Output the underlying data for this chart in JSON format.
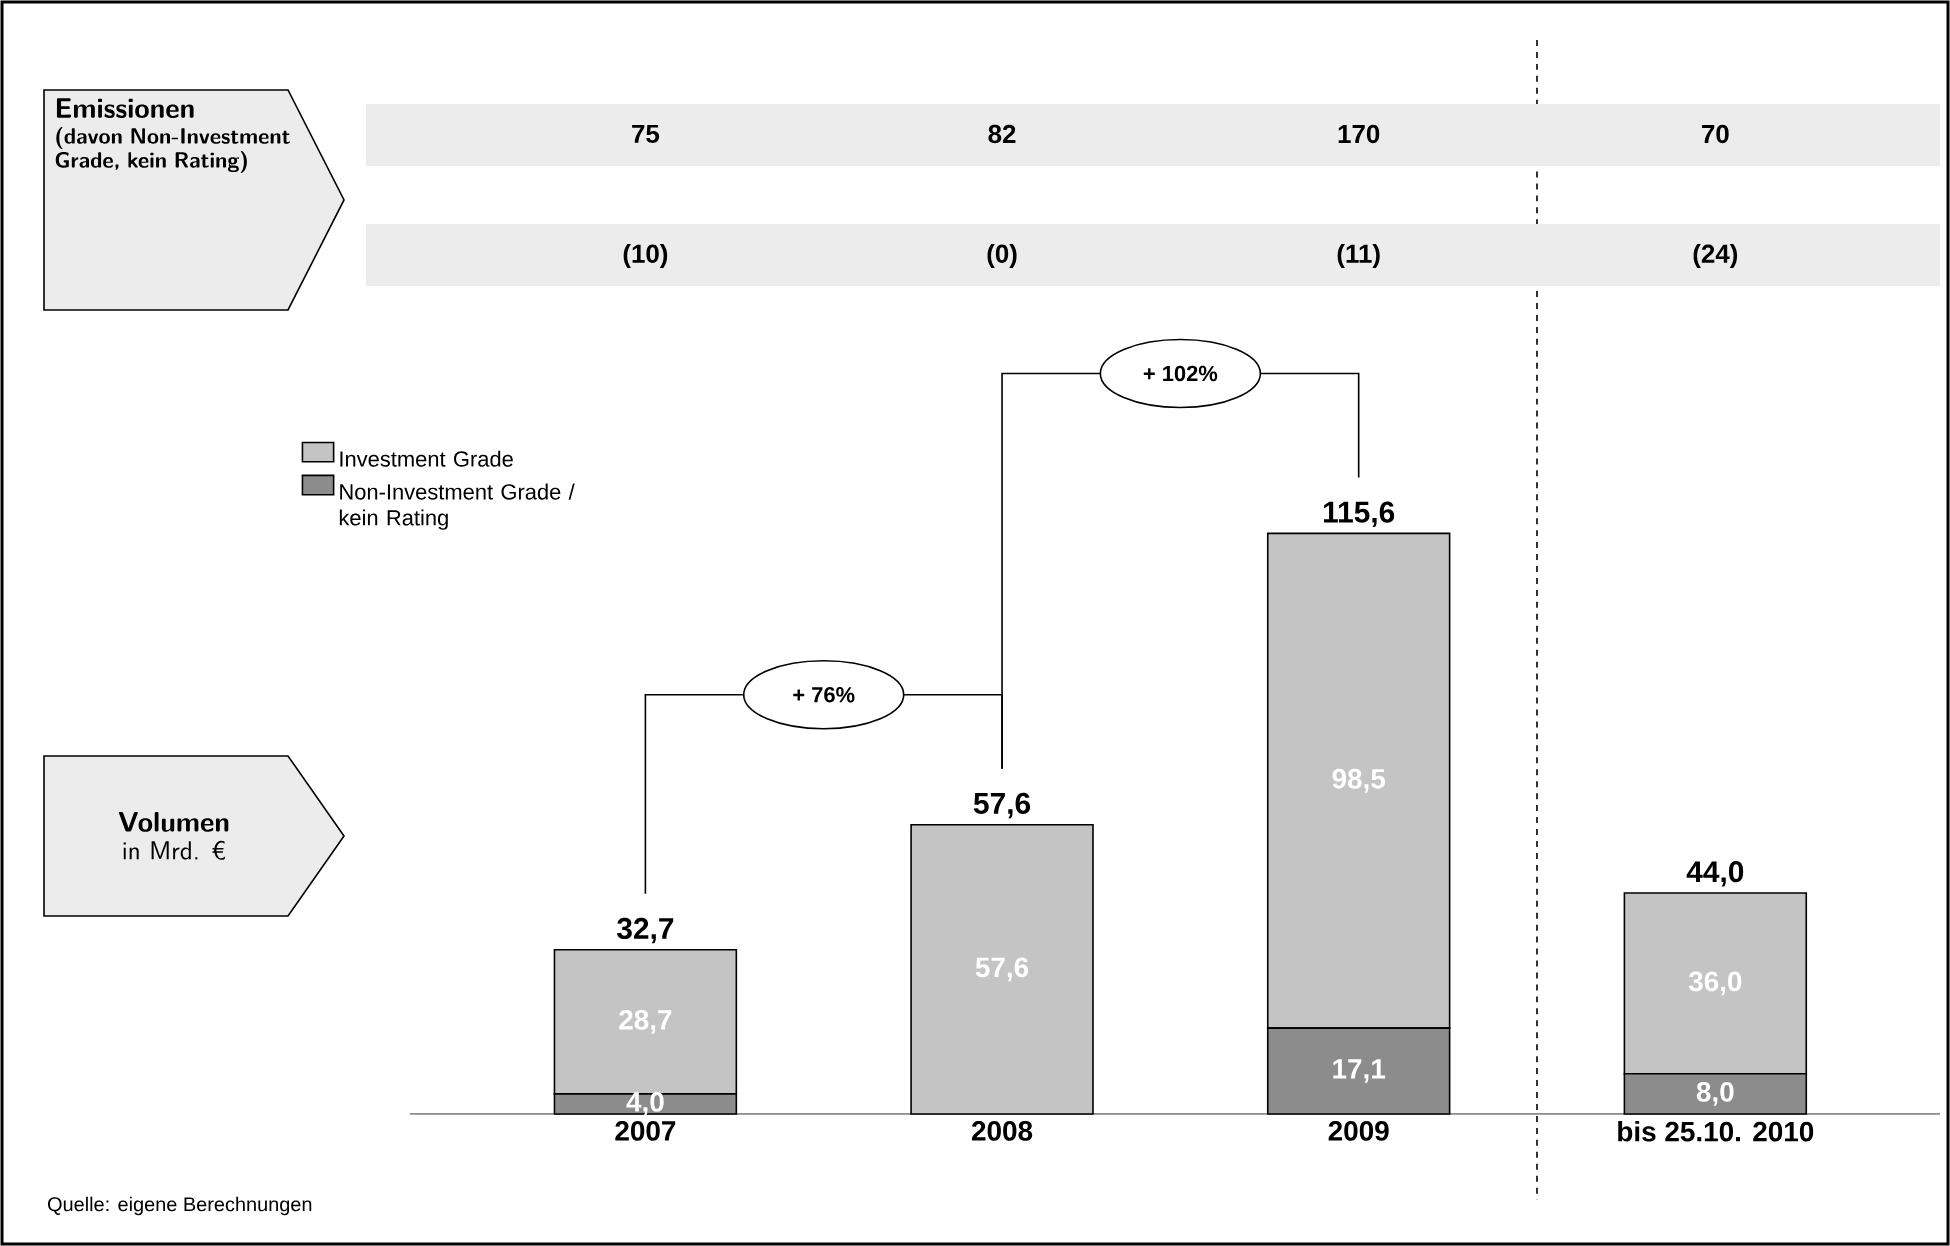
{
  "chart_data": {
    "type": "bar",
    "stacked": true,
    "categories": [
      "2007",
      "2008",
      "2009",
      "bis 25.10. 2010"
    ],
    "series": [
      {
        "name": "Non-Investment Grade / kein Rating",
        "color": "#8c8c8c",
        "values": [
          4.0,
          0,
          17.1,
          8.0
        ],
        "value_labels": [
          "4,0",
          null,
          "17,1",
          "8,0"
        ]
      },
      {
        "name": "Investment Grade",
        "color": "#c4c4c4",
        "values": [
          28.7,
          57.6,
          98.5,
          36.0
        ],
        "value_labels": [
          "28,7",
          "57,6",
          "98,5",
          "36,0"
        ]
      }
    ],
    "totals": [
      "32,7",
      "57,6",
      "115,6",
      "44,0"
    ],
    "legend": "top left",
    "annotations": [
      "Emissionen",
      "(davon Non-Investment Grade, kein Rating)",
      "75",
      "82",
      "170",
      "70",
      "(10)",
      "(0)",
      "(11)",
      "(24)",
      "Volumen",
      "in Mrd. €",
      "+ 76%",
      "+ 102%",
      "Quelle: eigene Berechnungen"
    ]
  }
}
